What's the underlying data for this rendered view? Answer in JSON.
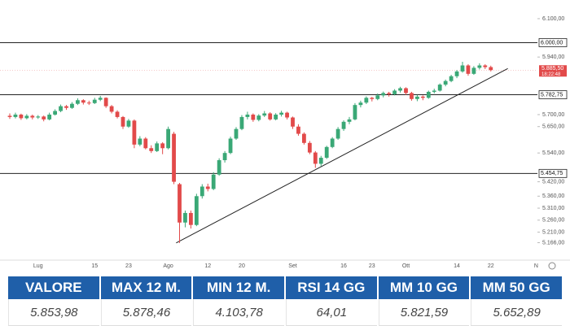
{
  "chart_data": {
    "type": "candlestick",
    "categories": [
      null,
      null,
      null,
      null,
      null,
      "Lug",
      null,
      null,
      null,
      null,
      null,
      null,
      null,
      null,
      null,
      "15",
      null,
      null,
      null,
      null,
      null,
      "23",
      null,
      null,
      null,
      null,
      null,
      null,
      "Ago",
      null,
      null,
      null,
      null,
      null,
      null,
      "12",
      null,
      null,
      null,
      null,
      null,
      "20",
      null,
      null,
      null,
      null,
      null,
      null,
      null,
      null,
      "Set",
      null,
      null,
      null,
      null,
      null,
      null,
      null,
      null,
      "16",
      null,
      null,
      null,
      null,
      "23",
      null,
      null,
      null,
      null,
      null,
      "Ott",
      null,
      null,
      null,
      null,
      null,
      null,
      null,
      null,
      "14",
      null,
      null,
      null,
      null,
      null,
      "22",
      null,
      null,
      null,
      null,
      null,
      null,
      null,
      "N"
    ],
    "open": [
      5695,
      5690,
      5700,
      5685,
      5695,
      5688,
      5692,
      5680,
      5700,
      5715,
      5735,
      5728,
      5745,
      5760,
      5750,
      5748,
      5762,
      5770,
      5735,
      5712,
      5690,
      5650,
      5675,
      5575,
      5600,
      5560,
      5548,
      5580,
      5560,
      5620,
      5410,
      5250,
      5290,
      5240,
      5360,
      5400,
      5390,
      5450,
      5510,
      5540,
      5600,
      5640,
      5690,
      5700,
      5678,
      5696,
      5705,
      5680,
      5700,
      5708,
      5688,
      5650,
      5620,
      5582,
      5542,
      5495,
      5520,
      5565,
      5600,
      5640,
      5670,
      5680,
      5740,
      5750,
      5770,
      5765,
      5780,
      5790,
      5785,
      5800,
      5810,
      5790,
      5765,
      5775,
      5770,
      5795,
      5800,
      5825,
      5840,
      5860,
      5880,
      5905,
      5870,
      5895,
      5905,
      5898,
      null,
      null,
      null,
      null,
      null,
      null,
      null,
      null
    ],
    "high": [
      5705,
      5708,
      5704,
      5702,
      5700,
      5698,
      5696,
      5708,
      5722,
      5742,
      5740,
      5752,
      5768,
      5764,
      5758,
      5770,
      5778,
      5772,
      5740,
      5718,
      5694,
      5682,
      5680,
      5610,
      5606,
      5572,
      5588,
      5585,
      5650,
      5628,
      5415,
      5300,
      5300,
      5370,
      5410,
      5412,
      5460,
      5518,
      5548,
      5608,
      5648,
      5698,
      5712,
      5705,
      5702,
      5715,
      5710,
      5706,
      5716,
      5712,
      5692,
      5660,
      5626,
      5590,
      5548,
      5528,
      5570,
      5606,
      5648,
      5676,
      5690,
      5748,
      5758,
      5776,
      5774,
      5788,
      5796,
      5795,
      5806,
      5816,
      5814,
      5795,
      5782,
      5780,
      5800,
      5808,
      5830,
      5846,
      5866,
      5886,
      5920,
      5910,
      5902,
      5914,
      5910,
      5904,
      null,
      null,
      null,
      null,
      null,
      null,
      null,
      null
    ],
    "low": [
      5682,
      5684,
      5678,
      5680,
      5680,
      5682,
      5672,
      5676,
      5696,
      5710,
      5720,
      5724,
      5740,
      5742,
      5740,
      5744,
      5756,
      5728,
      5705,
      5684,
      5640,
      5645,
      5560,
      5568,
      5555,
      5540,
      5544,
      5535,
      5555,
      5410,
      5165,
      5230,
      5225,
      5235,
      5350,
      5380,
      5385,
      5445,
      5500,
      5535,
      5595,
      5635,
      5680,
      5670,
      5672,
      5690,
      5675,
      5676,
      5692,
      5680,
      5640,
      5612,
      5575,
      5535,
      5478,
      5485,
      5515,
      5560,
      5595,
      5632,
      5660,
      5676,
      5730,
      5744,
      5755,
      5760,
      5772,
      5775,
      5780,
      5792,
      5782,
      5758,
      5756,
      5760,
      5766,
      5788,
      5796,
      5818,
      5835,
      5852,
      5875,
      5862,
      5866,
      5888,
      5890,
      5880,
      null,
      null,
      null,
      null,
      null,
      null,
      null,
      null
    ],
    "close": [
      5690,
      5700,
      5685,
      5695,
      5688,
      5692,
      5680,
      5700,
      5715,
      5735,
      5728,
      5745,
      5760,
      5750,
      5748,
      5762,
      5770,
      5735,
      5712,
      5690,
      5650,
      5675,
      5575,
      5600,
      5560,
      5548,
      5580,
      5560,
      5640,
      5420,
      5250,
      5290,
      5240,
      5360,
      5400,
      5390,
      5450,
      5510,
      5540,
      5600,
      5640,
      5690,
      5700,
      5678,
      5696,
      5705,
      5680,
      5700,
      5708,
      5688,
      5650,
      5620,
      5582,
      5542,
      5495,
      5520,
      5565,
      5600,
      5640,
      5670,
      5680,
      5740,
      5750,
      5770,
      5765,
      5780,
      5790,
      5785,
      5800,
      5810,
      5790,
      5765,
      5775,
      5770,
      5795,
      5800,
      5825,
      5840,
      5860,
      5880,
      5905,
      5870,
      5895,
      5905,
      5898,
      5885.5,
      null,
      null,
      null,
      null,
      null,
      null,
      null,
      null
    ],
    "up_color": "#3aa876",
    "down_color": "#e24a4a",
    "ylim": [
      5100,
      6110
    ],
    "yticks": [
      {
        "value": 6100,
        "label": "6.100,00"
      },
      {
        "value": 5940,
        "label": "5.940,00"
      },
      {
        "value": 5700,
        "label": "5.700,00"
      },
      {
        "value": 5650,
        "label": "5.650,00"
      },
      {
        "value": 5540,
        "label": "5.540,00"
      },
      {
        "value": 5420,
        "label": "5.420,00"
      },
      {
        "value": 5360,
        "label": "5.360,00"
      },
      {
        "value": 5310,
        "label": "5.310,00"
      },
      {
        "value": 5260,
        "label": "5.260,00"
      },
      {
        "value": 5210,
        "label": "5.210,00"
      },
      {
        "value": 5166,
        "label": "5.166,00"
      }
    ],
    "levels": [
      {
        "value": 6000,
        "label": "6.000,00"
      },
      {
        "value": 5782.75,
        "label": "5.782,75"
      },
      {
        "value": 5454.75,
        "label": "5.454,75"
      }
    ],
    "last_price": {
      "value": 5885.5,
      "label": "5.885,50",
      "time": "18:22:48",
      "color": "#e24a4a"
    },
    "trendline": {
      "x": [
        29.4,
        88
      ],
      "values": [
        5165,
        5892
      ]
    }
  },
  "table": {
    "headers": [
      "VALORE",
      "MAX 12 M.",
      "MIN 12 M.",
      "RSI 14 GG",
      "MM 10 GG",
      "MM 50 GG"
    ],
    "rows": [
      [
        "5.853,98",
        "5.878,46",
        "4.103,78",
        "64,01",
        "5.821,59",
        "5.652,89"
      ]
    ]
  }
}
